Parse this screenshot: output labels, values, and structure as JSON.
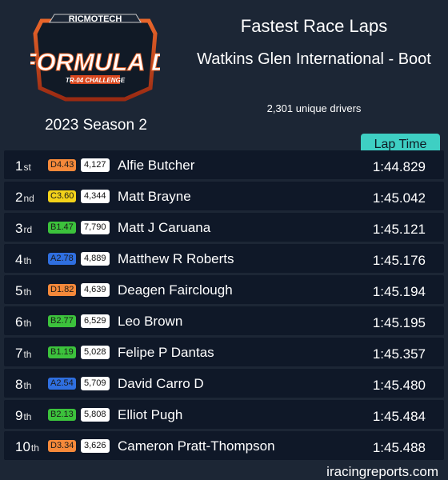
{
  "header": {
    "brand": "RICMOTECH",
    "logo_title": "FORMULA D",
    "logo_subtitle": "TR-04 CHALLENGE",
    "season": "2023 Season 2",
    "title": "Fastest Race Laps",
    "track": "Watkins Glen International - Boot",
    "unique_drivers": "2,301 unique drivers",
    "laptime_column": "Lap Time"
  },
  "license_colors": {
    "D": "#f5893a",
    "C": "#f2d21a",
    "B": "#3cc23c",
    "A": "#2f6fe0"
  },
  "rows": [
    {
      "pos": "1",
      "suffix": "st",
      "license": "D4.43",
      "class": "D",
      "irating": "4,127",
      "name": "Alfie Butcher",
      "time": "1:44.829"
    },
    {
      "pos": "2",
      "suffix": "nd",
      "license": "C3.60",
      "class": "C",
      "irating": "4,344",
      "name": "Matt Brayne",
      "time": "1:45.042"
    },
    {
      "pos": "3",
      "suffix": "rd",
      "license": "B1.47",
      "class": "B",
      "irating": "7,790",
      "name": "Matt J Caruana",
      "time": "1:45.121"
    },
    {
      "pos": "4",
      "suffix": "th",
      "license": "A2.78",
      "class": "A",
      "irating": "4,889",
      "name": "Matthew R Roberts",
      "time": "1:45.176"
    },
    {
      "pos": "5",
      "suffix": "th",
      "license": "D1.82",
      "class": "D",
      "irating": "4,639",
      "name": "Deagen Fairclough",
      "time": "1:45.194"
    },
    {
      "pos": "6",
      "suffix": "th",
      "license": "B2.77",
      "class": "B",
      "irating": "6,529",
      "name": "Leo Brown",
      "time": "1:45.195"
    },
    {
      "pos": "7",
      "suffix": "th",
      "license": "B1.19",
      "class": "B",
      "irating": "5,028",
      "name": "Felipe P Dantas",
      "time": "1:45.357"
    },
    {
      "pos": "8",
      "suffix": "th",
      "license": "A2.54",
      "class": "A",
      "irating": "5,709",
      "name": "David Carro D",
      "time": "1:45.480"
    },
    {
      "pos": "9",
      "suffix": "th",
      "license": "B2.13",
      "class": "B",
      "irating": "5,808",
      "name": "Elliot Pugh",
      "time": "1:45.484"
    },
    {
      "pos": "10",
      "suffix": "th",
      "license": "D3.34",
      "class": "D",
      "irating": "3,626",
      "name": "Cameron Pratt-Thompson",
      "time": "1:45.488"
    }
  ],
  "footer": {
    "site": "iracingreports.com"
  }
}
